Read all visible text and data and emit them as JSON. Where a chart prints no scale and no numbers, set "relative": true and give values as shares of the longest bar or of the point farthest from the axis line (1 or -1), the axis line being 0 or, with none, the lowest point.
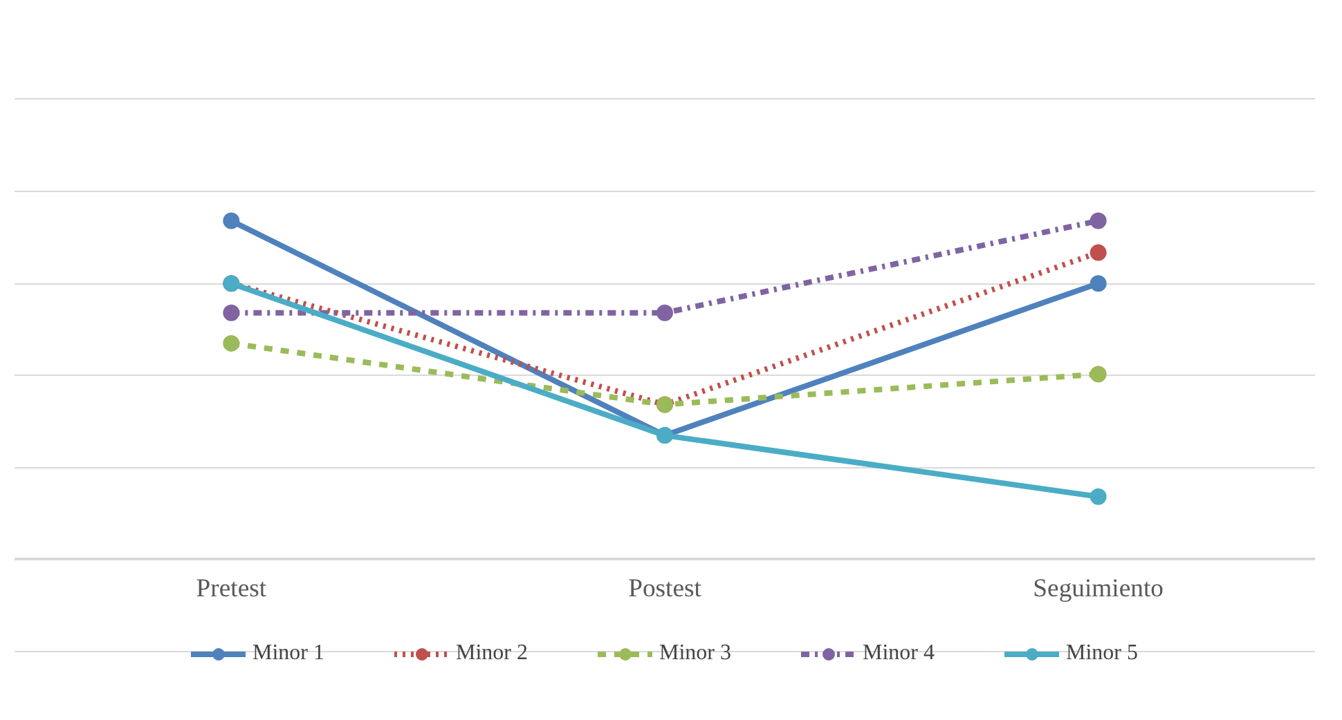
{
  "chart_data": {
    "type": "line",
    "relative": true,
    "categories": [
      "Pretest",
      "Postest",
      "Seguimiento"
    ],
    "series": [
      {
        "name": "Minor 1",
        "color": "#4f81bd",
        "line_style": "solid",
        "values": [
          1.0,
          0.366,
          0.815
        ]
      },
      {
        "name": "Minor 2",
        "color": "#c0504d",
        "line_style": "dotted",
        "values": [
          0.815,
          0.457,
          0.906
        ]
      },
      {
        "name": "Minor 3",
        "color": "#9bbb59",
        "line_style": "dashed",
        "values": [
          0.638,
          0.457,
          0.547
        ]
      },
      {
        "name": "Minor 4",
        "color": "#8064a2",
        "line_style": "dashdot",
        "values": [
          0.728,
          0.728,
          1.0
        ]
      },
      {
        "name": "Minor 5",
        "color": "#4bacc6",
        "line_style": "solid",
        "values": [
          0.815,
          0.366,
          0.185
        ]
      }
    ],
    "marker": "circle",
    "grid": "y",
    "legend": "bottom"
  }
}
